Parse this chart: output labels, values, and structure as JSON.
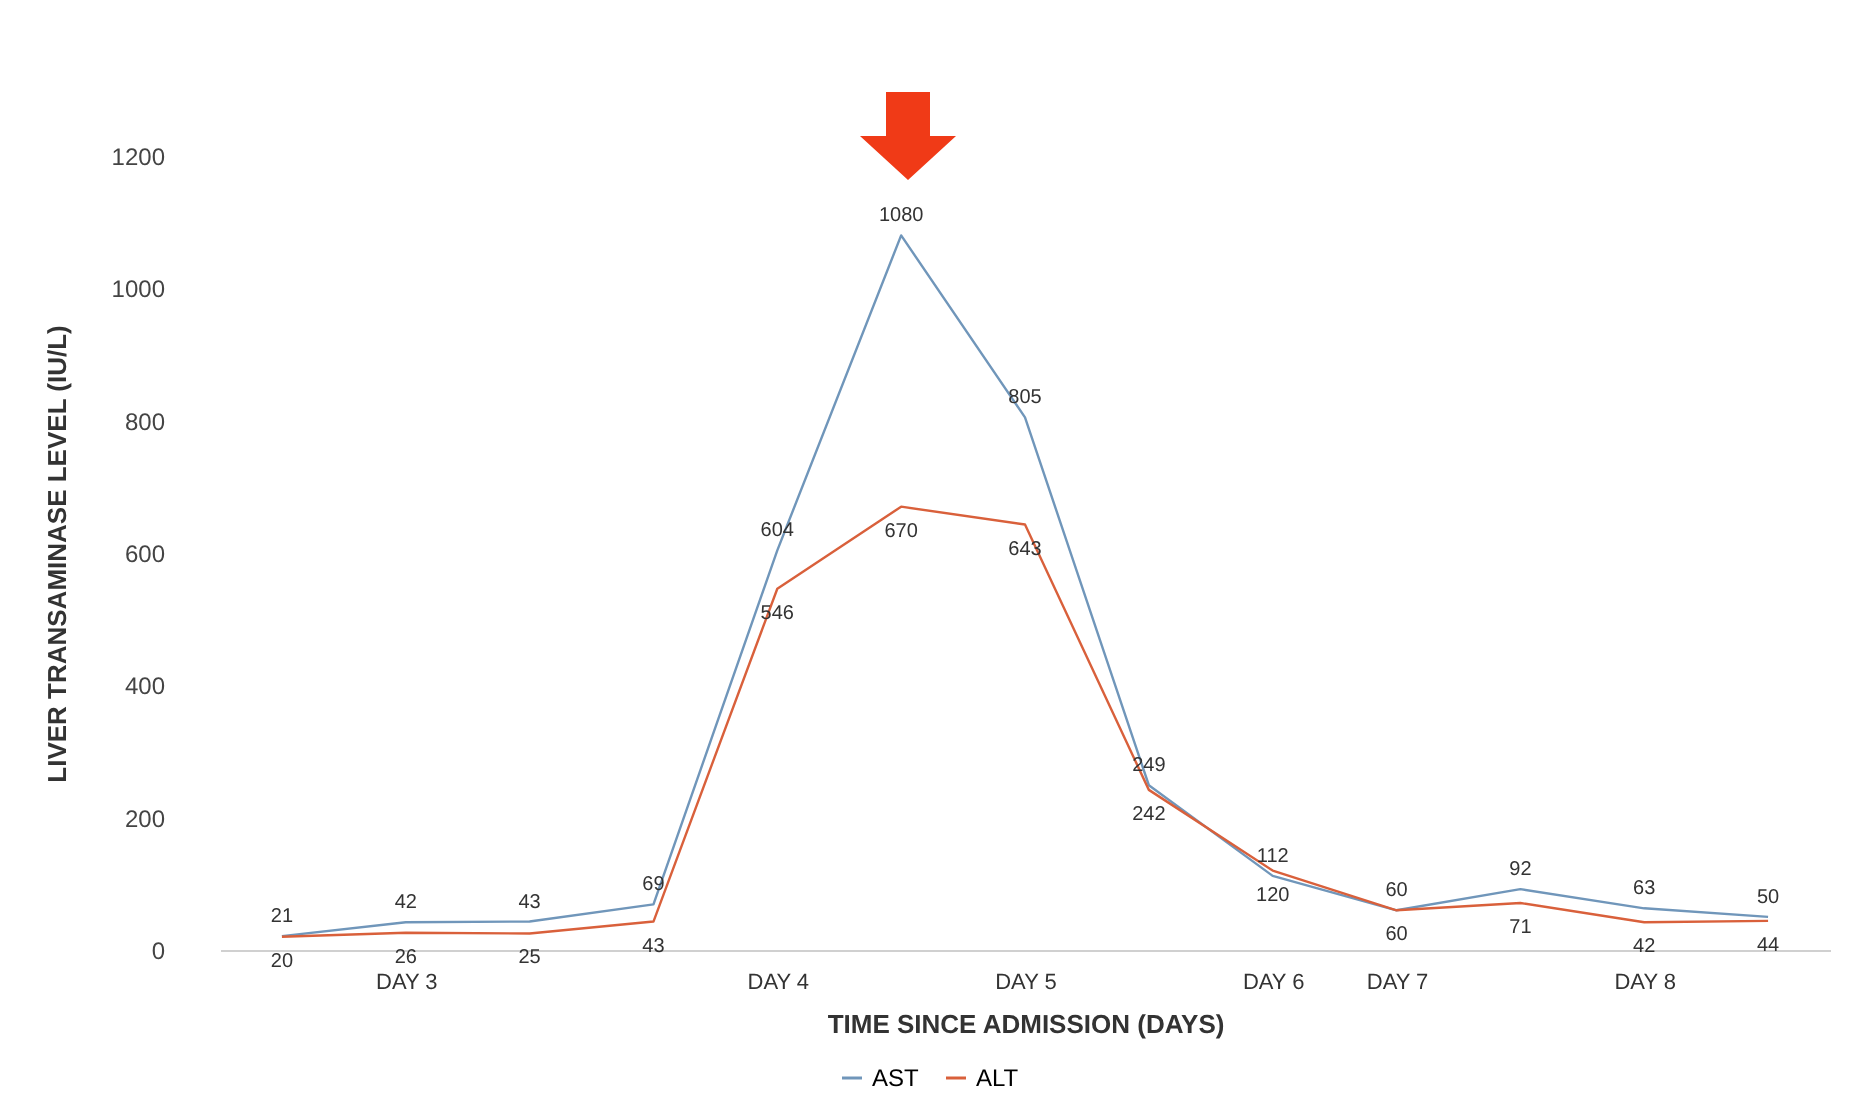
{
  "chart_data": {
    "type": "line",
    "xlabel": "TIME SINCE ADMISSION (DAYS)",
    "ylabel": "LIVER TRANSAMINASE LEVEL (IU/L)",
    "categories": [
      null,
      "DAY 3",
      null,
      null,
      "DAY 4",
      null,
      "DAY 5",
      null,
      "DAY  6",
      "DAY 7",
      null,
      "DAY 8",
      null
    ],
    "series": [
      {
        "name": "AST",
        "color": "#7096ba",
        "values": [
          21,
          42,
          43,
          69,
          604,
          1080,
          805,
          249,
          112,
          60,
          92,
          63,
          50
        ]
      },
      {
        "name": "ALT",
        "color": "#d9603b",
        "values": [
          20,
          26,
          25,
          43,
          546,
          670,
          643,
          242,
          120,
          60,
          71,
          42,
          44
        ]
      }
    ],
    "ylim": [
      0,
      1200
    ],
    "yticks": [
      0,
      200,
      400,
      600,
      800,
      1000,
      1200
    ],
    "data_labels": true,
    "legend": "bottom",
    "grid": false,
    "marker": "none",
    "line_style": "solid"
  }
}
